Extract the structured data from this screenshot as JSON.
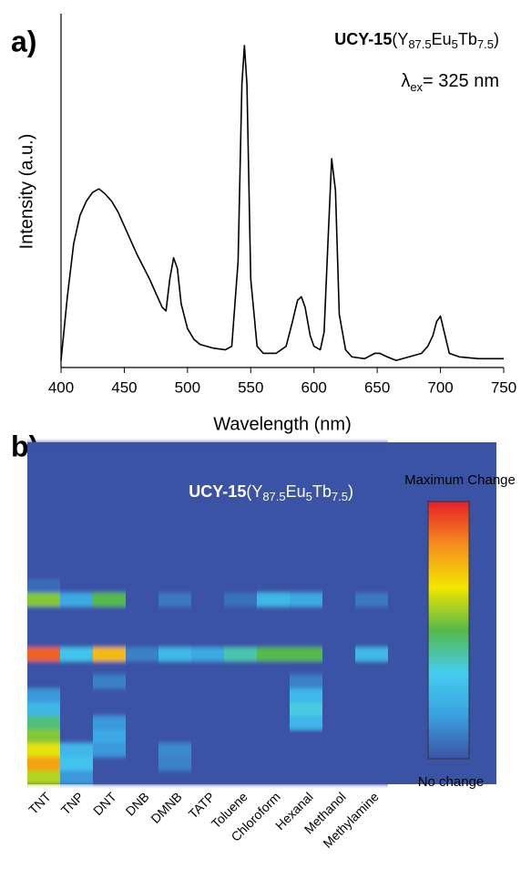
{
  "chart_data": [
    {
      "type": "line",
      "panel_label": "a)",
      "title": [
        "UCY-15",
        "(Y",
        "87.5",
        "Eu",
        "5",
        "Tb",
        "7.5",
        ")"
      ],
      "subtitle": [
        "λ",
        "ex",
        "= 325 nm"
      ],
      "xlabel": "Wavelength (nm)",
      "ylabel": "Intensity (a.u.)",
      "color": "#000000",
      "xlim": [
        400,
        750
      ],
      "xticks": [
        400,
        450,
        500,
        550,
        600,
        650,
        700,
        750
      ],
      "ylim": [
        0,
        100
      ],
      "x": [
        400,
        405,
        410,
        415,
        420,
        425,
        430,
        435,
        440,
        445,
        450,
        455,
        460,
        465,
        470,
        475,
        480,
        483,
        486,
        489,
        492,
        495,
        500,
        505,
        510,
        520,
        530,
        535,
        540,
        543,
        545,
        547,
        550,
        555,
        560,
        570,
        578,
        583,
        587,
        590,
        593,
        597,
        600,
        605,
        608,
        611,
        614,
        617,
        620,
        625,
        630,
        640,
        648,
        652,
        658,
        665,
        675,
        685,
        690,
        694,
        697,
        700,
        703,
        707,
        715,
        730,
        750
      ],
      "values": [
        2,
        20,
        35,
        43,
        47,
        49.5,
        50.5,
        49,
        47,
        44,
        40,
        36,
        32,
        28.5,
        25,
        21,
        17,
        16,
        25,
        31,
        28,
        18,
        11,
        8,
        6.5,
        5.5,
        5,
        6,
        30,
        80,
        91,
        80,
        25,
        6,
        4,
        4,
        6,
        13,
        19,
        20,
        17,
        9,
        6,
        5,
        10,
        35,
        59,
        50,
        15,
        5,
        3,
        2.5,
        4,
        4,
        3,
        2,
        3,
        4,
        6,
        9,
        13,
        14.5,
        10,
        4,
        3,
        2.5,
        2.5
      ]
    },
    {
      "type": "heatmap",
      "panel_label": "b)",
      "title": [
        "UCY-15",
        "(Y",
        "87.5",
        "Eu",
        "5",
        "Tb",
        "7.5",
        ")"
      ],
      "categories": [
        "TNT",
        "TNP",
        "DNT",
        "DNB",
        "DMNB",
        "TATP",
        "Toluene",
        "Chloroform",
        "Hexanal",
        "Methanol",
        "Methylamine"
      ],
      "legend_max_label": "Maximum Change",
      "legend_min_label": "No change",
      "vlim": [
        0,
        100
      ],
      "colors": [
        "#3b53a5",
        "#3aa0e0",
        "#45cdf0",
        "#55b94a",
        "#f3e600",
        "#f58e1f",
        "#e51f28"
      ],
      "values": [
        [
          0,
          0,
          0,
          0,
          0,
          0,
          0,
          0,
          0,
          0,
          5,
          55,
          0,
          0,
          0,
          90,
          0,
          0,
          15,
          25,
          45,
          55,
          65,
          80,
          60
        ],
        [
          0,
          0,
          0,
          0,
          0,
          0,
          0,
          0,
          0,
          0,
          0,
          20,
          0,
          0,
          0,
          30,
          0,
          0,
          0,
          0,
          0,
          0,
          25,
          30,
          15
        ],
        [
          0,
          0,
          0,
          0,
          0,
          0,
          0,
          0,
          0,
          0,
          0,
          50,
          0,
          0,
          0,
          75,
          0,
          10,
          0,
          0,
          15,
          20,
          15,
          0,
          0
        ],
        [
          0,
          0,
          0,
          0,
          0,
          0,
          0,
          0,
          0,
          0,
          0,
          0,
          0,
          0,
          0,
          10,
          0,
          0,
          0,
          0,
          0,
          0,
          0,
          0,
          0
        ],
        [
          0,
          0,
          0,
          0,
          0,
          0,
          0,
          0,
          0,
          0,
          0,
          8,
          0,
          0,
          0,
          25,
          0,
          0,
          0,
          0,
          0,
          0,
          12,
          10,
          0
        ],
        [
          0,
          0,
          0,
          0,
          0,
          0,
          0,
          0,
          0,
          0,
          0,
          0,
          0,
          0,
          0,
          20,
          0,
          0,
          0,
          0,
          0,
          0,
          0,
          0,
          0
        ],
        [
          0,
          0,
          0,
          0,
          0,
          0,
          0,
          0,
          0,
          0,
          0,
          6,
          0,
          0,
          0,
          40,
          0,
          0,
          0,
          0,
          0,
          0,
          0,
          0,
          0
        ],
        [
          0,
          0,
          0,
          0,
          0,
          0,
          0,
          0,
          0,
          0,
          0,
          25,
          0,
          0,
          0,
          50,
          0,
          0,
          0,
          0,
          0,
          0,
          0,
          0,
          0
        ],
        [
          0,
          0,
          0,
          0,
          0,
          0,
          0,
          0,
          0,
          0,
          0,
          20,
          0,
          0,
          0,
          50,
          0,
          10,
          25,
          35,
          25,
          0,
          0,
          0,
          0
        ],
        [
          0,
          0,
          0,
          0,
          0,
          0,
          0,
          0,
          0,
          0,
          0,
          0,
          0,
          0,
          0,
          0,
          0,
          0,
          0,
          0,
          0,
          0,
          0,
          0,
          0
        ],
        [
          0,
          0,
          0,
          0,
          0,
          0,
          0,
          0,
          0,
          0,
          0,
          8,
          0,
          0,
          0,
          25,
          0,
          0,
          0,
          0,
          0,
          0,
          0,
          0,
          0
        ]
      ]
    }
  ]
}
